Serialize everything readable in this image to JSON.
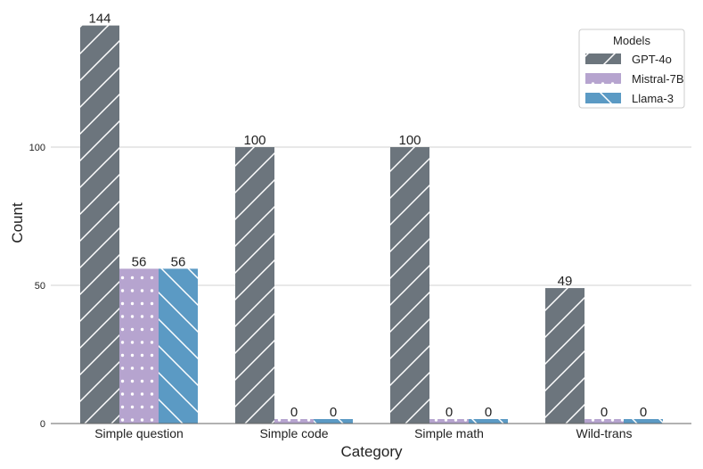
{
  "chart_data": {
    "type": "bar",
    "categories": [
      "Simple question",
      "Simple code",
      "Simple math",
      "Wild-trans"
    ],
    "series": [
      {
        "name": "GPT-4o",
        "values": [
          144,
          100,
          100,
          49
        ],
        "labels": [
          "144",
          "100",
          "100",
          "49"
        ],
        "color": "#6c757d",
        "pattern": "diagonal-hatch"
      },
      {
        "name": "Mistral-7B",
        "values": [
          56,
          0,
          0,
          0
        ],
        "labels": [
          "56",
          "0",
          "0",
          "0"
        ],
        "color": "#b6a4cf",
        "pattern": "dots"
      },
      {
        "name": "Llama-3",
        "values": [
          56,
          0,
          0,
          0
        ],
        "labels": [
          "56",
          "0",
          "0",
          "0"
        ],
        "color": "#5b9ac4",
        "pattern": "back-diagonal-hatch"
      }
    ],
    "xlabel": "Category",
    "ylabel": "Count",
    "yticks": [
      0,
      50,
      100
    ],
    "ytick_labels": [
      "0",
      "50",
      "100"
    ],
    "legend_title": "Models",
    "legend_position": "top-right",
    "grid": "horizontal",
    "zero_bar_min_height": 5
  }
}
